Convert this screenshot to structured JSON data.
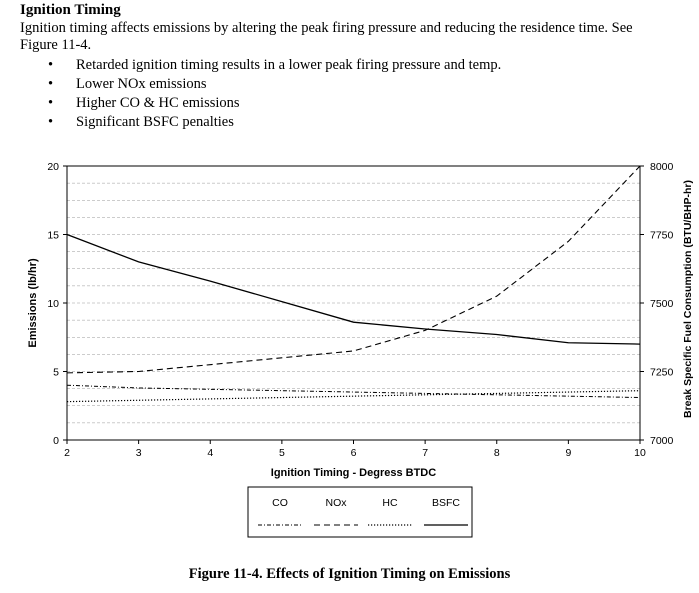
{
  "document": {
    "heading": "Ignition Timing",
    "intro_line1": "Ignition timing affects emissions by altering the peak firing pressure and reducing the residence time.  See",
    "intro_line2": "Figure 11-4.",
    "bullets": [
      "Retarded ignition timing results in a lower peak firing pressure and temp.",
      "Lower NOx emissions",
      "Higher CO & HC emissions",
      "Significant BSFC penalties"
    ],
    "bullet_glyph": "•",
    "caption": "Figure 11-4.  Effects of Ignition Timing on Emissions"
  },
  "chart_data": {
    "type": "line",
    "title": "",
    "xlabel": "Ignition Timing - Degress BTDC",
    "ylabel": "Emissions (lb/hr)",
    "y2label": "Break Specific Fuel Consumption (BTU/BHP-hr)",
    "xlim": [
      2,
      10
    ],
    "ylim": [
      0,
      20
    ],
    "y2lim": [
      7000,
      8000
    ],
    "xticks": [
      "2",
      "3",
      "4",
      "5",
      "6",
      "7",
      "8",
      "9",
      "10"
    ],
    "yticks": [
      "0",
      "5",
      "10",
      "15",
      "20"
    ],
    "y2ticks": [
      "7000",
      "7250",
      "7500",
      "7750",
      "8000"
    ],
    "grid": true,
    "legend_position": "bottom-center",
    "series": [
      {
        "name": "CO",
        "axis": "left",
        "style": "dash-dot",
        "x": [
          2,
          3,
          4,
          5,
          6,
          7,
          8,
          9,
          10
        ],
        "values": [
          4.0,
          3.8,
          3.7,
          3.6,
          3.5,
          3.4,
          3.3,
          3.2,
          3.1
        ]
      },
      {
        "name": "NOx",
        "axis": "left",
        "style": "dashed",
        "x": [
          2,
          3,
          4,
          5,
          6,
          7,
          8,
          9,
          10
        ],
        "values": [
          4.9,
          5.0,
          5.5,
          6.0,
          6.5,
          8.0,
          10.5,
          14.5,
          20.0
        ]
      },
      {
        "name": "HC",
        "axis": "left",
        "style": "dotted",
        "x": [
          2,
          3,
          4,
          5,
          6,
          7,
          8,
          9,
          10
        ],
        "values": [
          2.8,
          2.9,
          3.0,
          3.1,
          3.2,
          3.3,
          3.4,
          3.5,
          3.6
        ]
      },
      {
        "name": "BSFC",
        "axis": "right",
        "style": "solid",
        "x": [
          2,
          3,
          4,
          5,
          6,
          7,
          8,
          9,
          10
        ],
        "values": [
          7750,
          7650,
          7580,
          7505,
          7430,
          7405,
          7385,
          7355,
          7350
        ]
      }
    ]
  }
}
